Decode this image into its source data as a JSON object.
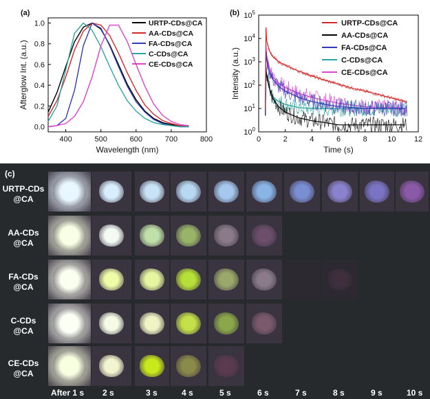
{
  "chart_data": [
    {
      "panel": "(a)",
      "type": "line",
      "xlabel": "Wavelength (nm)",
      "ylabel": "Afterglow Int. (a.u.)",
      "xlim": [
        350,
        800
      ],
      "ylim": [
        -0.05,
        1.05
      ],
      "xticks": [
        400,
        500,
        600,
        700,
        800
      ],
      "yticks": [
        0.0,
        0.2,
        0.4,
        0.6,
        0.8,
        1.0
      ],
      "grid": false,
      "legend": "top-right",
      "series": [
        {
          "name": "URTP-CDs@CA",
          "color": "#000000",
          "x": [
            350,
            375,
            400,
            425,
            450,
            475,
            500,
            525,
            550,
            575,
            600,
            625,
            650,
            675,
            700,
            725,
            750
          ],
          "y": [
            0.14,
            0.33,
            0.58,
            0.82,
            0.96,
            1.0,
            0.94,
            0.79,
            0.6,
            0.41,
            0.26,
            0.15,
            0.08,
            0.04,
            0.02,
            0.01,
            0.0
          ]
        },
        {
          "name": "AA-CDs@CA",
          "color": "#d62728",
          "x": [
            350,
            375,
            400,
            425,
            450,
            475,
            500,
            525,
            550,
            575,
            600,
            625,
            650,
            675,
            700,
            725,
            750
          ],
          "y": [
            0.1,
            0.25,
            0.48,
            0.74,
            0.92,
            1.0,
            0.98,
            0.88,
            0.71,
            0.52,
            0.35,
            0.21,
            0.12,
            0.06,
            0.03,
            0.01,
            0.0
          ]
        },
        {
          "name": "FA-CDs@CA",
          "color": "#2e3bb5",
          "x": [
            350,
            375,
            400,
            425,
            450,
            475,
            500,
            525,
            550,
            575,
            600,
            625,
            650,
            675,
            700,
            725,
            750
          ],
          "y": [
            0.0,
            0.01,
            0.08,
            0.35,
            0.78,
            1.0,
            0.95,
            0.78,
            0.58,
            0.39,
            0.24,
            0.14,
            0.07,
            0.03,
            0.01,
            0.0,
            0.0
          ]
        },
        {
          "name": "C-CDs@CA",
          "color": "#2aa6a0",
          "x": [
            350,
            375,
            400,
            425,
            450,
            475,
            500,
            525,
            550,
            575,
            600,
            625,
            650,
            675,
            700,
            725,
            750
          ],
          "y": [
            0.05,
            0.2,
            0.55,
            0.9,
            1.0,
            0.93,
            0.77,
            0.58,
            0.4,
            0.25,
            0.15,
            0.08,
            0.04,
            0.02,
            0.01,
            0.0,
            0.0
          ]
        },
        {
          "name": "CE-CDs@CA",
          "color": "#e040d0",
          "x": [
            350,
            375,
            400,
            425,
            450,
            475,
            500,
            525,
            550,
            575,
            600,
            625,
            650,
            675,
            700,
            725,
            750
          ],
          "y": [
            0.0,
            0.01,
            0.03,
            0.1,
            0.24,
            0.48,
            0.78,
            0.98,
            0.98,
            0.82,
            0.6,
            0.39,
            0.22,
            0.11,
            0.05,
            0.02,
            0.01
          ]
        }
      ]
    },
    {
      "panel": "(b)",
      "type": "line",
      "xlabel": "Time (s)",
      "ylabel": "Intensity (a.u.)",
      "xlim": [
        0,
        12
      ],
      "ylim": [
        1,
        100000
      ],
      "yscale": "log",
      "xticks": [
        0,
        2,
        4,
        6,
        8,
        10,
        12
      ],
      "yticks": [
        "10^0",
        "10^1",
        "10^2",
        "10^3",
        "10^4",
        "10^5"
      ],
      "grid": false,
      "legend": "top-right",
      "series": [
        {
          "name": "URTP-CDs@CA",
          "color": "#d62728",
          "x": [
            0.5,
            0.55,
            0.6,
            0.8,
            1,
            1.5,
            2,
            3,
            4,
            5,
            6,
            7,
            8,
            9,
            10,
            11
          ],
          "y": [
            10,
            30000,
            8000,
            3000,
            1800,
            1000,
            700,
            400,
            250,
            160,
            110,
            75,
            55,
            40,
            28,
            20
          ]
        },
        {
          "name": "AA-CDs@CA",
          "color": "#000000",
          "x": [
            0.5,
            0.55,
            0.6,
            0.8,
            1,
            1.5,
            2,
            3,
            4,
            5,
            6,
            7,
            8,
            9,
            10,
            11
          ],
          "y": [
            5,
            600,
            250,
            80,
            30,
            12,
            7,
            4,
            3,
            2.5,
            2,
            2,
            2,
            2,
            2,
            2
          ]
        },
        {
          "name": "FA-CDs@CA",
          "color": "#2e3bb5",
          "x": [
            0.5,
            0.55,
            0.6,
            0.8,
            1,
            1.5,
            2,
            3,
            4,
            5,
            6,
            7,
            8,
            9,
            10,
            11
          ],
          "y": [
            5,
            3000,
            1200,
            400,
            200,
            90,
            55,
            30,
            20,
            15,
            12,
            11,
            10,
            10,
            10,
            10
          ]
        },
        {
          "name": "C-CDs@CA",
          "color": "#2aa6a0",
          "x": [
            0.5,
            0.55,
            0.6,
            0.8,
            1,
            1.5,
            2,
            3,
            4,
            5,
            6,
            7,
            8,
            9,
            10,
            11
          ],
          "y": [
            5,
            500,
            200,
            70,
            35,
            20,
            15,
            11,
            10,
            10,
            10,
            10,
            10,
            10,
            10,
            10
          ]
        },
        {
          "name": "CE-CDs@CA",
          "color": "#e040d0",
          "x": [
            0.5,
            0.55,
            0.6,
            0.8,
            1,
            1.5,
            2,
            3,
            4,
            5,
            6,
            7,
            8,
            9,
            10,
            11
          ],
          "y": [
            5,
            5000,
            1800,
            600,
            250,
            120,
            80,
            45,
            30,
            22,
            17,
            14,
            12,
            11,
            11,
            10
          ]
        }
      ]
    }
  ],
  "panel_c": {
    "label": "(c)",
    "rows": [
      {
        "label_line1": "URTP-CDs",
        "label_line2": "@CA",
        "colors": [
          "#e8f6ff",
          "#d8eeff",
          "#c8e2f6",
          "#b8d8f2",
          "#a6c8ee",
          "#8ab4e6",
          "#7a8ed2",
          "#8a82cc",
          "#7a74c4",
          "#8a5aa8"
        ],
        "count": 10
      },
      {
        "label_line1": "AA-CDs",
        "label_line2": "@CA",
        "colors": [
          "#f8ffe4",
          "#f4fbf4",
          "#bfe0a8",
          "#98b468",
          "#8a7a8a",
          "#6a4e6a"
        ],
        "count": 6
      },
      {
        "label_line1": "FA-CDs",
        "label_line2": "@CA",
        "colors": [
          "#fbfff0",
          "#eefca8",
          "#e6f6a0",
          "#b6e038",
          "#9aa86a",
          "#8a7a8a",
          "",
          "#3e2e3e"
        ],
        "count": 8
      },
      {
        "label_line1": "C-CDs",
        "label_line2": "@CA",
        "colors": [
          "#fbfff4",
          "#f6fbe6",
          "#f0f4c4",
          "#c4e048",
          "#8aa84a",
          "#7a5a6a"
        ],
        "count": 6
      },
      {
        "label_line1": "CE-CDs",
        "label_line2": "@CA",
        "colors": [
          "#f8ffe0",
          "#f2f6d0",
          "#c8ea1c",
          "#8a8a4a",
          "#5a3a4e"
        ],
        "count": 5
      }
    ],
    "columns": [
      "After 1 s",
      "2 s",
      "3 s",
      "4 s",
      "5 s",
      "6 s",
      "7 s",
      "8 s",
      "9 s",
      "10 s"
    ]
  }
}
